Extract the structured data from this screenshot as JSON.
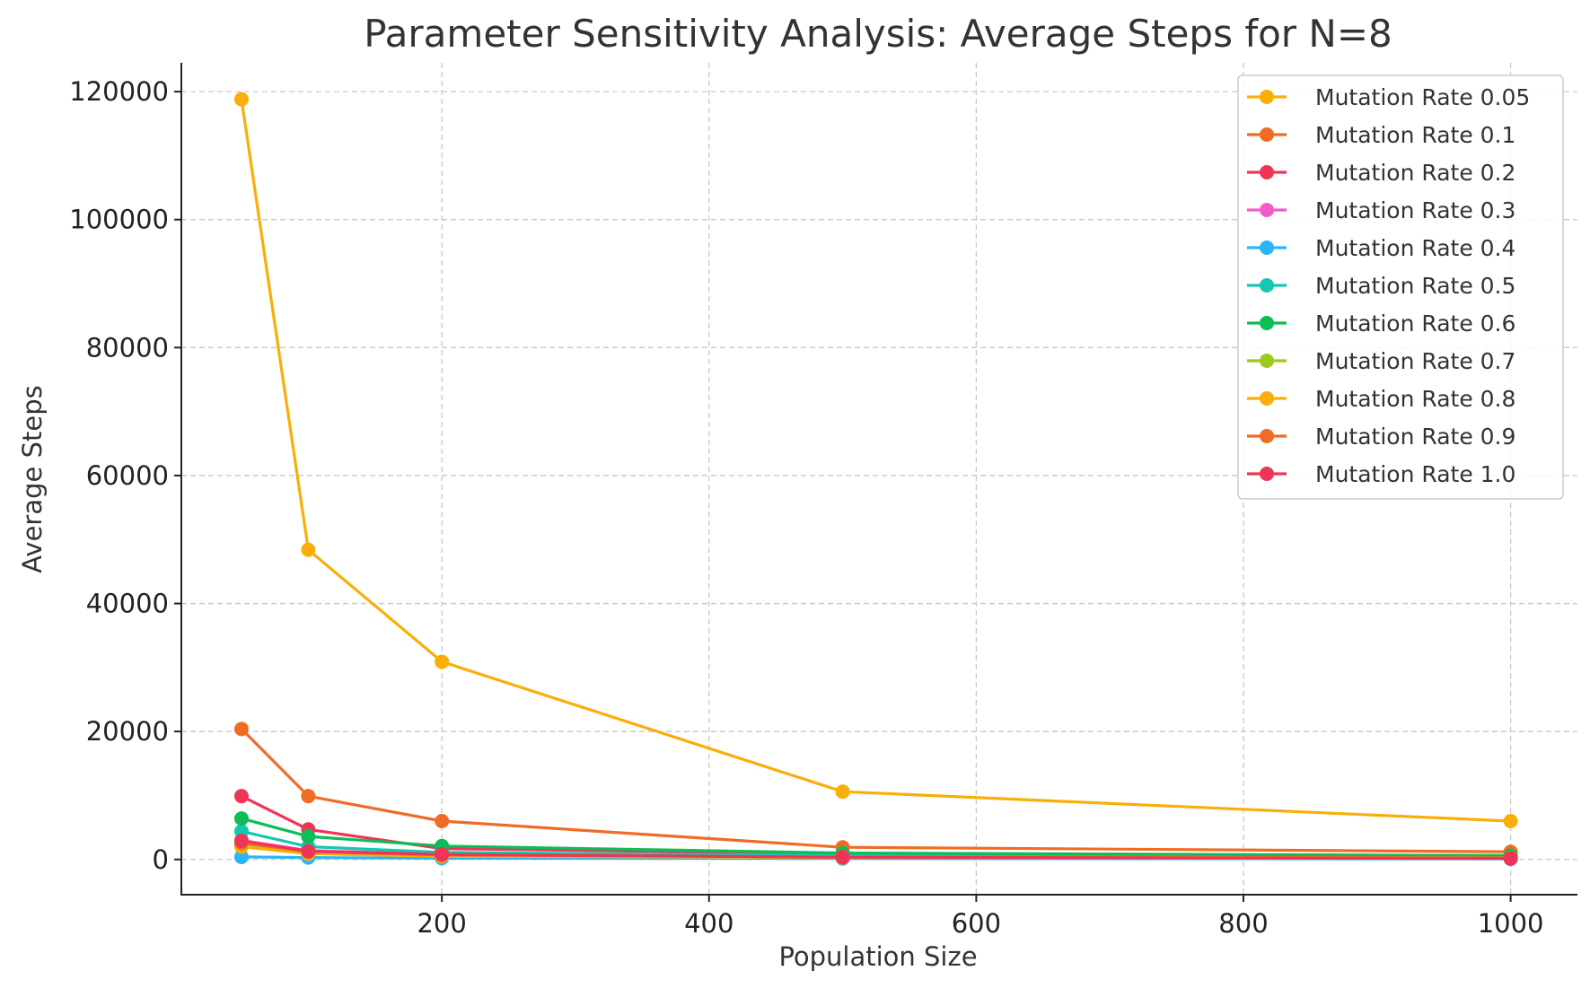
{
  "chart_data": {
    "type": "line",
    "title": "Parameter Sensitivity Analysis: Average Steps for N=8",
    "xlabel": "Population Size",
    "ylabel": "Average Steps",
    "x": [
      50,
      100,
      200,
      500,
      1000
    ],
    "xlim": [
      5,
      1050
    ],
    "ylim": [
      -5500,
      124500
    ],
    "xticks": [
      200,
      400,
      600,
      800,
      1000
    ],
    "yticks": [
      0,
      20000,
      40000,
      60000,
      80000,
      100000,
      120000
    ],
    "grid": true,
    "legend_position": "top-right",
    "series": [
      {
        "name": "Mutation Rate 0.05",
        "color": "#F9AE08",
        "values": [
          118800,
          48400,
          30900,
          10600,
          6000
        ]
      },
      {
        "name": "Mutation Rate 0.1",
        "color": "#F06C24",
        "values": [
          20400,
          9900,
          6000,
          1900,
          1200
        ]
      },
      {
        "name": "Mutation Rate 0.2",
        "color": "#EE3556",
        "values": [
          9900,
          4700,
          1700,
          900,
          600
        ]
      },
      {
        "name": "Mutation Rate 0.3",
        "color": "#F45ACD",
        "values": [
          3000,
          1400,
          800,
          500,
          300
        ]
      },
      {
        "name": "Mutation Rate 0.4",
        "color": "#2AB6F6",
        "values": [
          400,
          300,
          200,
          150,
          100
        ]
      },
      {
        "name": "Mutation Rate 0.5",
        "color": "#14C8B0",
        "values": [
          4400,
          2000,
          1100,
          600,
          400
        ]
      },
      {
        "name": "Mutation Rate 0.6",
        "color": "#0DBD58",
        "values": [
          6400,
          3600,
          2100,
          1000,
          600
        ]
      },
      {
        "name": "Mutation Rate 0.7",
        "color": "#9DC81E",
        "values": [
          2400,
          1100,
          600,
          400,
          250
        ]
      },
      {
        "name": "Mutation Rate 0.8",
        "color": "#F9AE08",
        "values": [
          2000,
          900,
          500,
          300,
          200
        ]
      },
      {
        "name": "Mutation Rate 0.9",
        "color": "#F06C24",
        "values": [
          2600,
          1200,
          700,
          400,
          250
        ]
      },
      {
        "name": "Mutation Rate 1.0",
        "color": "#EE3556",
        "values": [
          2900,
          1300,
          800,
          350,
          150
        ]
      }
    ]
  }
}
